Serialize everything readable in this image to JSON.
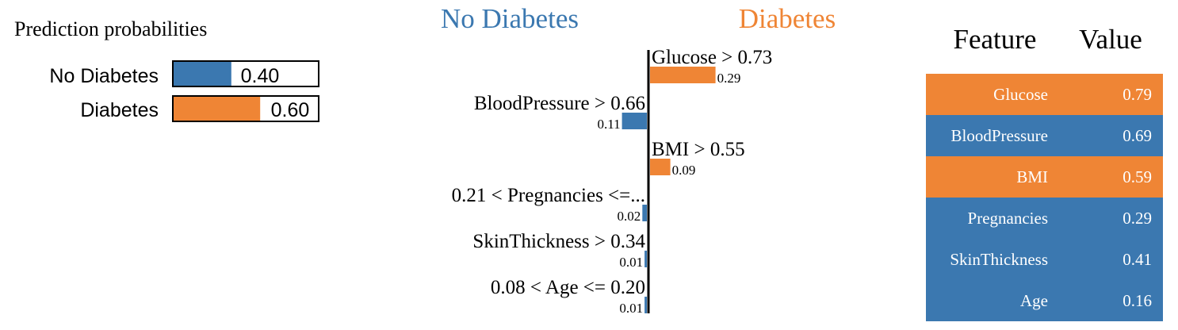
{
  "colors": {
    "no_diabetes": "#3b78b0",
    "diabetes": "#ef8535",
    "axis": "#000000",
    "white": "#ffffff"
  },
  "probabilities": {
    "title": "Prediction probabilities",
    "items": [
      {
        "label": "No Diabetes",
        "value": 0.4,
        "value_text": "0.40",
        "class": "no_diabetes"
      },
      {
        "label": "Diabetes",
        "value": 0.6,
        "value_text": "0.60",
        "class": "diabetes"
      }
    ]
  },
  "chart_data": {
    "type": "bar",
    "orientation": "horizontal",
    "left_class_label": "No Diabetes",
    "right_class_label": "Diabetes",
    "series": [
      {
        "condition": "Glucose > 0.73",
        "weight": 0.29,
        "weight_text": "0.29",
        "class": "diabetes"
      },
      {
        "condition": "BloodPressure > 0.66",
        "weight": 0.11,
        "weight_text": "0.11",
        "class": "no_diabetes"
      },
      {
        "condition": "BMI > 0.55",
        "weight": 0.09,
        "weight_text": "0.09",
        "class": "diabetes"
      },
      {
        "condition": "0.21 < Pregnancies <=...",
        "weight": 0.02,
        "weight_text": "0.02",
        "class": "no_diabetes"
      },
      {
        "condition": "SkinThickness > 0.34",
        "weight": 0.01,
        "weight_text": "0.01",
        "class": "no_diabetes"
      },
      {
        "condition": "0.08 < Age <= 0.20",
        "weight": 0.01,
        "weight_text": "0.01",
        "class": "no_diabetes"
      }
    ]
  },
  "feature_table": {
    "header_feature": "Feature",
    "header_value": "Value",
    "rows": [
      {
        "feature": "Glucose",
        "value": "0.79",
        "class": "diabetes"
      },
      {
        "feature": "BloodPressure",
        "value": "0.69",
        "class": "no_diabetes"
      },
      {
        "feature": "BMI",
        "value": "0.59",
        "class": "diabetes"
      },
      {
        "feature": "Pregnancies",
        "value": "0.29",
        "class": "no_diabetes"
      },
      {
        "feature": "SkinThickness",
        "value": "0.41",
        "class": "no_diabetes"
      },
      {
        "feature": "Age",
        "value": "0.16",
        "class": "no_diabetes"
      }
    ]
  }
}
